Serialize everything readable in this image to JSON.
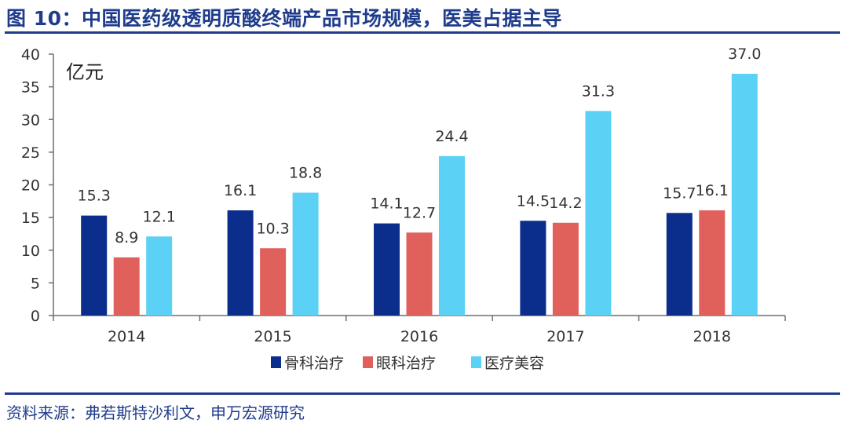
{
  "figure": {
    "title": "图 10：中国医药级透明质酸终端产品市场规模，医美占据主导",
    "source": "资料来源：弗若斯特沙利文，申万宏源研究"
  },
  "colors": {
    "accent": "#1f3c8c",
    "series": [
      "#0b2d8c",
      "#e0605c",
      "#5ad1f5"
    ]
  },
  "chart_data": {
    "type": "bar",
    "title": "",
    "xlabel": "",
    "ylabel": "",
    "unit_label": "亿元",
    "categories": [
      "2014",
      "2015",
      "2016",
      "2017",
      "2018"
    ],
    "series": [
      {
        "name": "骨科治疗",
        "values": [
          15.3,
          16.1,
          14.1,
          14.5,
          15.7
        ],
        "labels": [
          "15.3",
          "16.1",
          "14.1",
          "14.5",
          "15.7"
        ]
      },
      {
        "name": "眼科治疗",
        "values": [
          8.9,
          10.3,
          12.7,
          14.2,
          16.1
        ],
        "labels": [
          "8.9",
          "10.3",
          "12.7",
          "14.2",
          "16.1"
        ]
      },
      {
        "name": "医疗美容",
        "values": [
          12.1,
          18.8,
          24.4,
          31.3,
          37.0
        ],
        "labels": [
          "12.1",
          "18.8",
          "24.4",
          "31.3",
          "37.0"
        ]
      }
    ],
    "ylim": [
      0,
      40
    ],
    "yticks": [
      "0",
      "5",
      "10",
      "15",
      "20",
      "25",
      "30",
      "35",
      "40"
    ],
    "grid": false,
    "legend": "bottom"
  }
}
